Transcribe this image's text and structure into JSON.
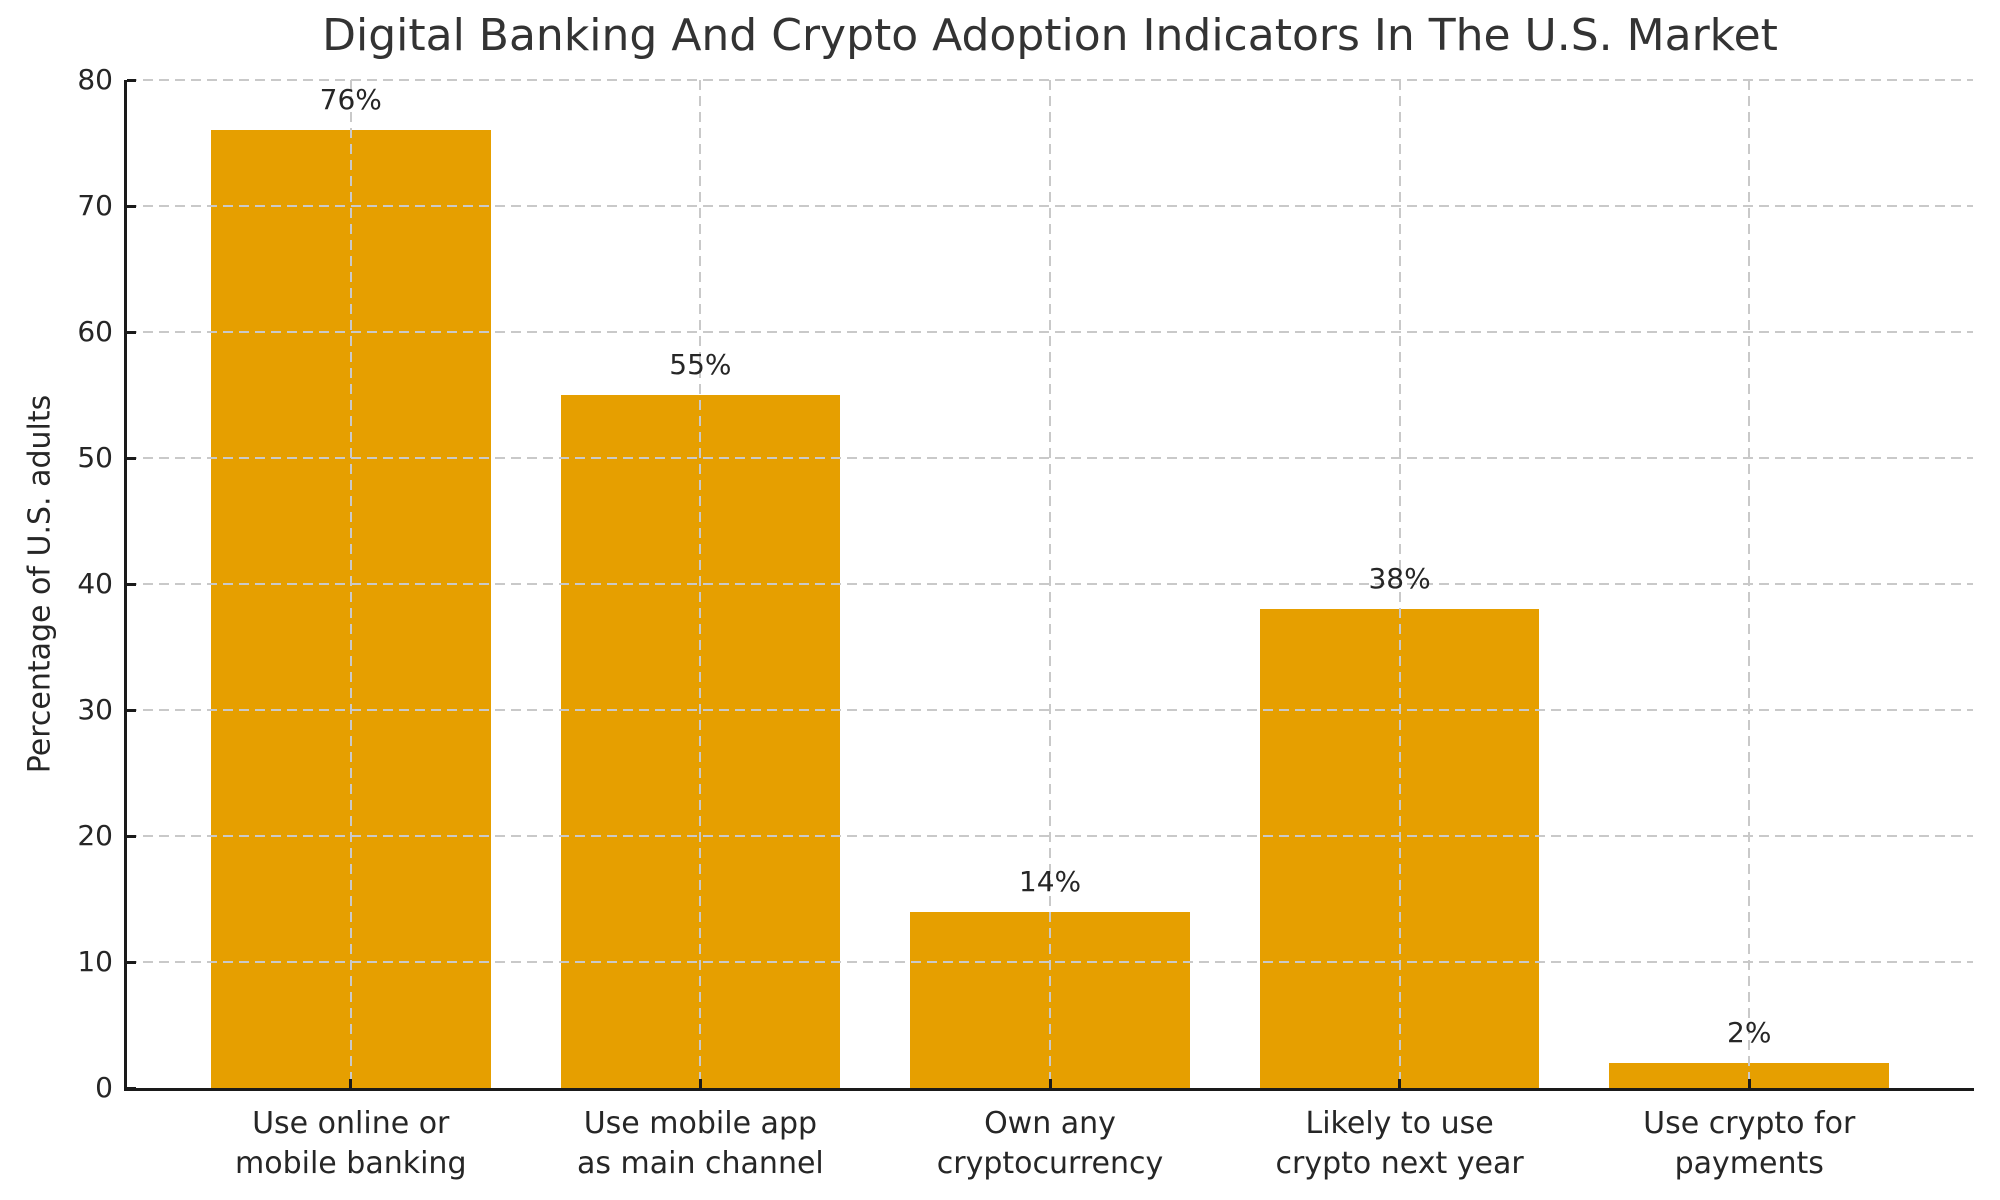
{
  "chart_data": {
    "type": "bar",
    "title": "Digital Banking And Crypto Adoption Indicators In The U.S. Market",
    "ylabel": "Percentage of U.S. adults",
    "xlabel": "",
    "categories": [
      "Use online or\nmobile banking",
      "Use mobile app\nas main channel",
      "Own any\ncryptocurrency",
      "Likely to use\ncrypto next year",
      "Use crypto for\npayments"
    ],
    "values": [
      76,
      55,
      14,
      38,
      2
    ],
    "value_labels": [
      "76%",
      "55%",
      "14%",
      "38%",
      "2%"
    ],
    "ylim": [
      0,
      80
    ],
    "yticks": [
      0,
      10,
      20,
      30,
      40,
      50,
      60,
      70,
      80
    ],
    "ytick_labels": [
      "0",
      "10",
      "20",
      "30",
      "40",
      "50",
      "60",
      "70",
      "80"
    ],
    "bar_color": "#E69F00",
    "bar_width_fraction": 0.8,
    "grid": {
      "visible": true,
      "axis": "both",
      "style": "dashed",
      "color": "#c9c9c9"
    },
    "legend_position": "none",
    "text_color": "#262626",
    "title_color": "#333333",
    "spine_color": "#1a1a1a"
  }
}
